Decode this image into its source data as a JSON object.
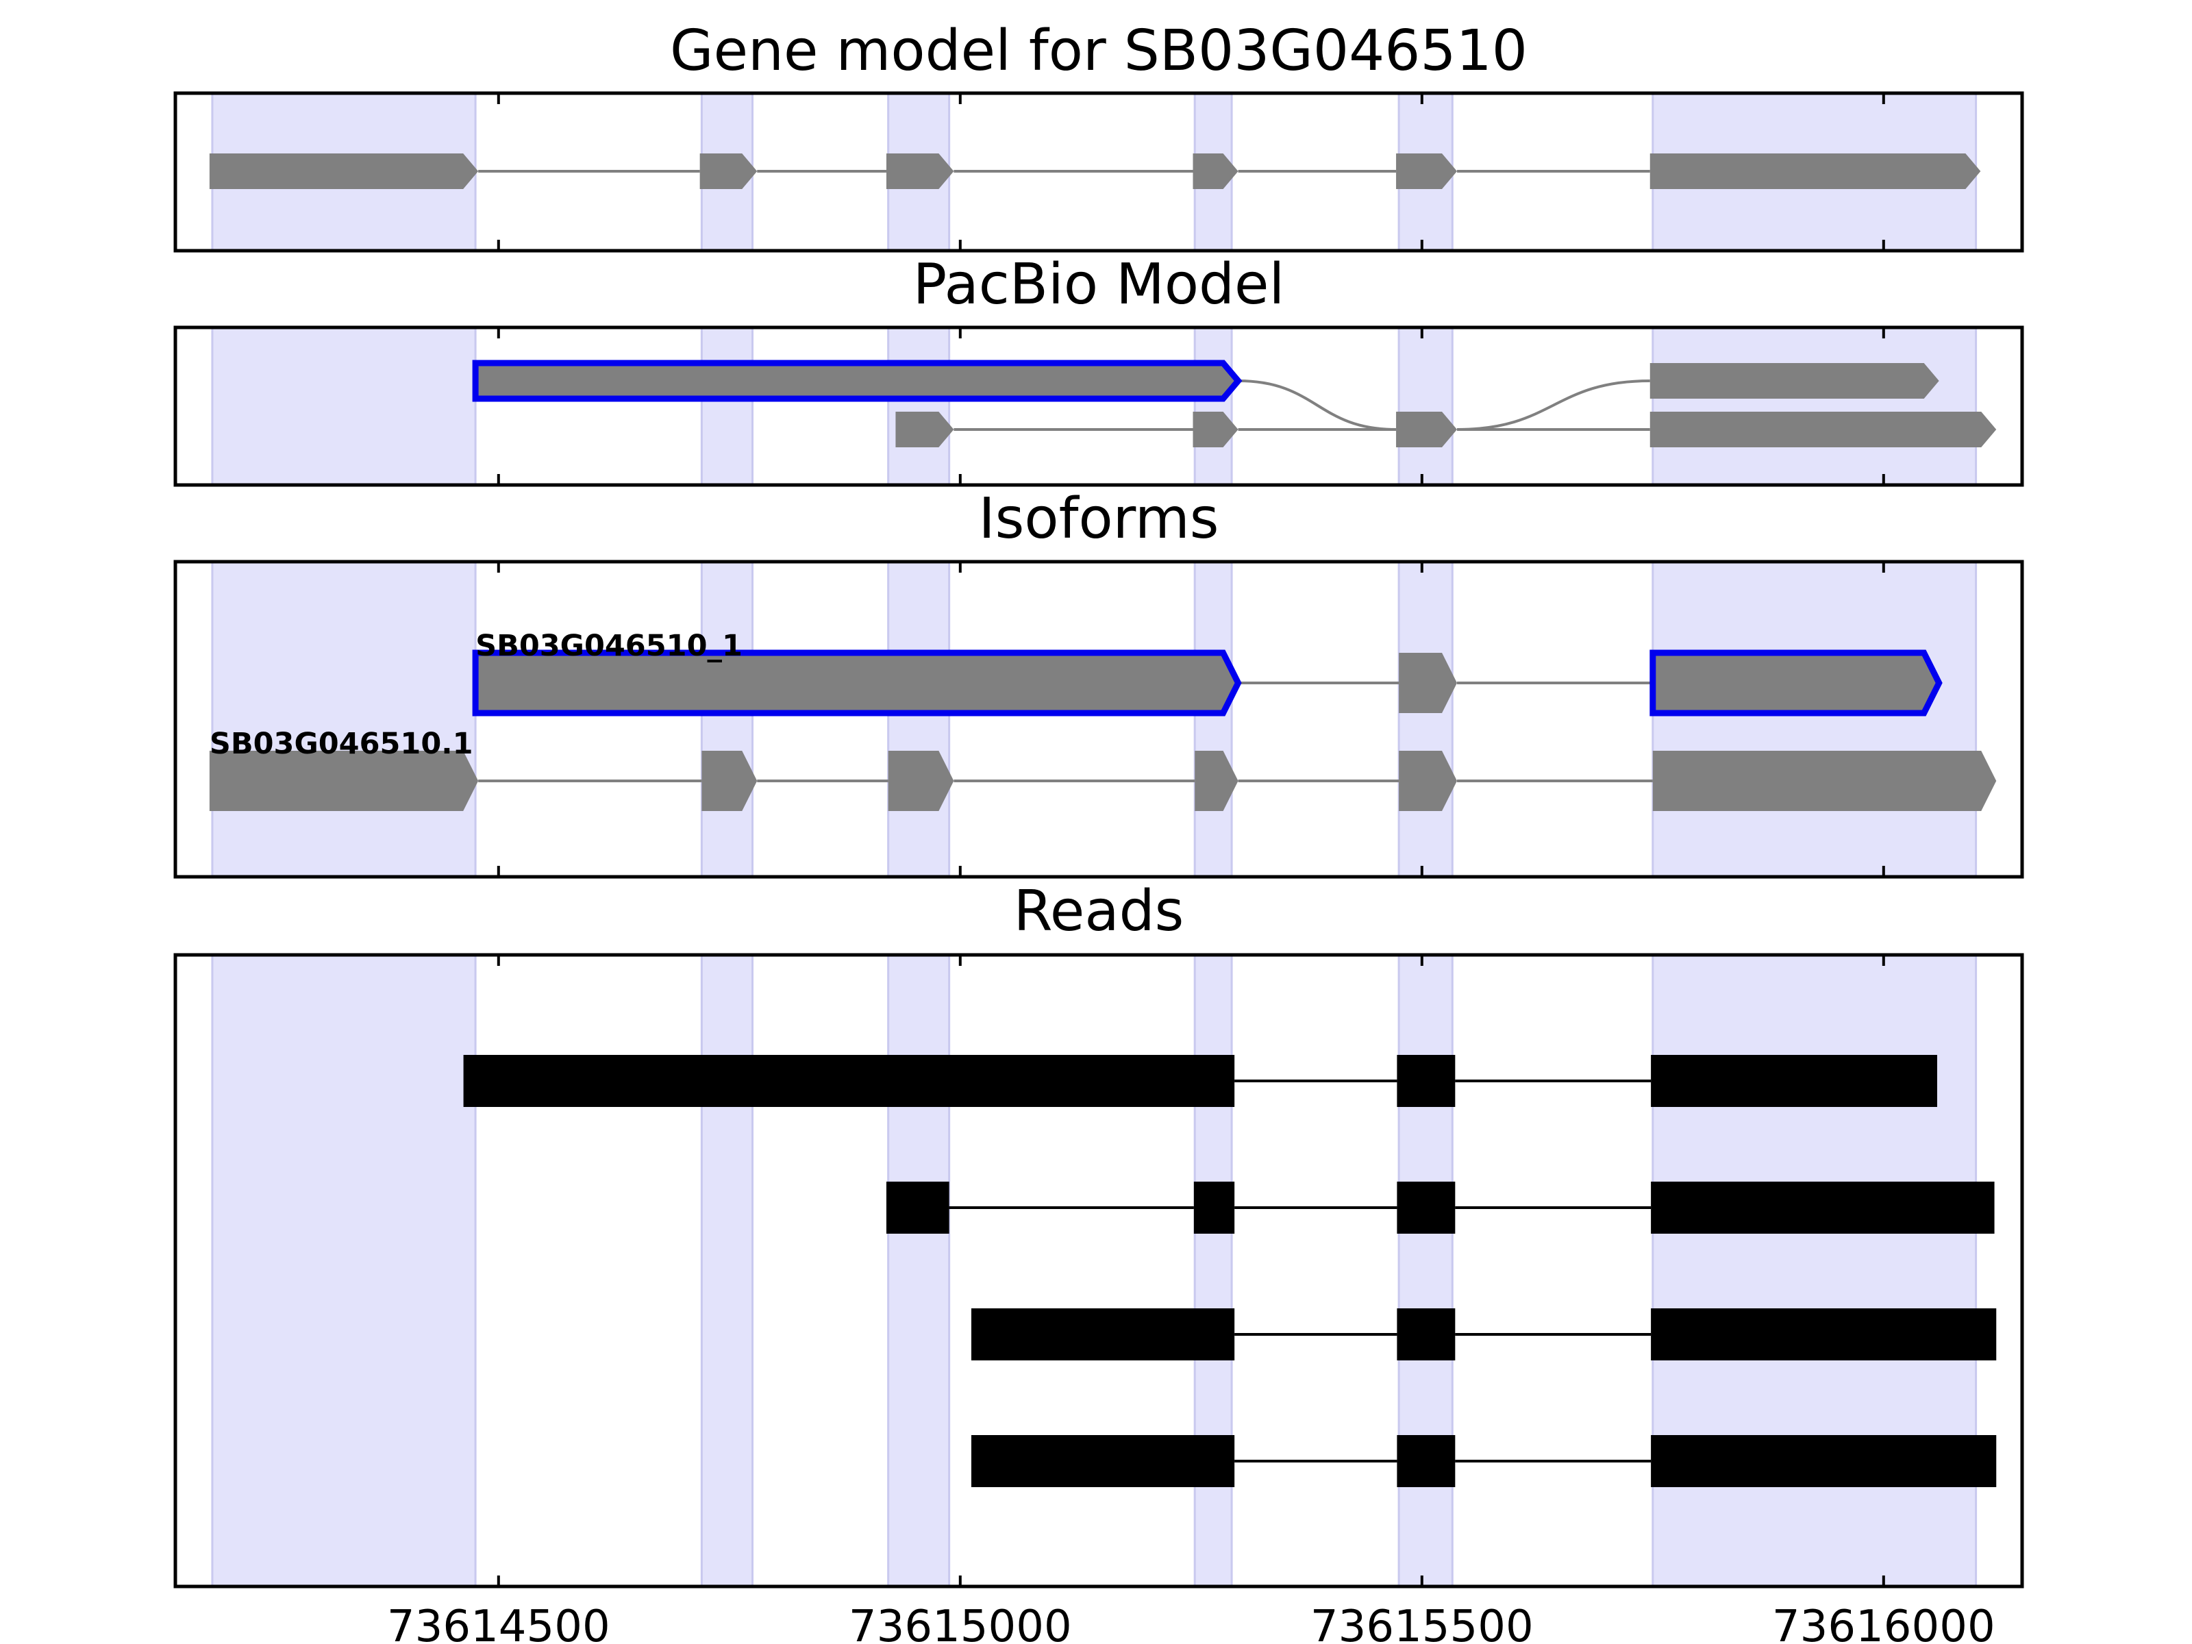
{
  "chart_data": {
    "type": "gene-model",
    "x_range": [
      73614150,
      73616150
    ],
    "x_ticks": [
      73614500,
      73615000,
      73615500,
      73616000
    ],
    "tick_labels": [
      "73614500",
      "73615000",
      "73615500",
      "73616000"
    ],
    "colors": {
      "exon_fill": "#808080",
      "intron_line": "#808080",
      "highlight_outline": "#0000ee",
      "shaded_region": "#e3e3fb",
      "read_fill": "#000000"
    },
    "shaded_regions": [
      [
        73614190,
        73614475
      ],
      [
        73614720,
        73614775
      ],
      [
        73614922,
        73614988
      ],
      [
        73615254,
        73615294
      ],
      [
        73615475,
        73615533
      ],
      [
        73615750,
        73616100
      ]
    ],
    "panels": [
      {
        "title": "Gene model for SB03G046510",
        "tracks": [
          {
            "label": "",
            "highlight": false,
            "exons": [
              [
                73614187,
                73614478
              ],
              [
                73614718,
                73614780
              ],
              [
                73614920,
                73614993
              ],
              [
                73615252,
                73615301
              ],
              [
                73615472,
                73615538
              ],
              [
                73615747,
                73616105
              ]
            ]
          }
        ]
      },
      {
        "title": "PacBio Model",
        "tracks": [
          {
            "label": "",
            "highlight": true,
            "exons": [
              [
                73614475,
                73615301
              ]
            ],
            "connect_to_next": [
              [
                73615472,
                73615538
              ],
              [
                73615747,
                73616060
              ]
            ]
          },
          {
            "label": "",
            "highlight": false,
            "exons": [
              [
                73614930,
                73614993
              ],
              [
                73615252,
                73615301
              ],
              [
                73615472,
                73615538
              ],
              [
                73615747,
                73616122
              ]
            ]
          }
        ]
      },
      {
        "title": "Isoforms",
        "tracks": [
          {
            "label": "SB03G046510_1",
            "highlight": true,
            "exons": [
              [
                73614475,
                73615301
              ],
              [
                73615475,
                73615538
              ],
              [
                73615750,
                73616060
              ]
            ]
          },
          {
            "label": "SB03G046510.1",
            "highlight": false,
            "exons": [
              [
                73614187,
                73614478
              ],
              [
                73614720,
                73614780
              ],
              [
                73614922,
                73614993
              ],
              [
                73615254,
                73615301
              ],
              [
                73615475,
                73615538
              ],
              [
                73615750,
                73616122
              ]
            ]
          }
        ]
      },
      {
        "title": "Reads",
        "reads": [
          [
            [
              73614462,
              73615297
            ],
            [
              73615473,
              73615536
            ],
            [
              73615748,
              73616058
            ]
          ],
          [
            [
              73614920,
              73614988
            ],
            [
              73615253,
              73615297
            ],
            [
              73615473,
              73615536
            ],
            [
              73615748,
              73616120
            ]
          ],
          [
            [
              73615012,
              73615297
            ],
            [
              73615473,
              73615536
            ],
            [
              73615748,
              73616122
            ]
          ],
          [
            [
              73615012,
              73615297
            ],
            [
              73615473,
              73615536
            ],
            [
              73615748,
              73616122
            ]
          ]
        ]
      }
    ]
  }
}
